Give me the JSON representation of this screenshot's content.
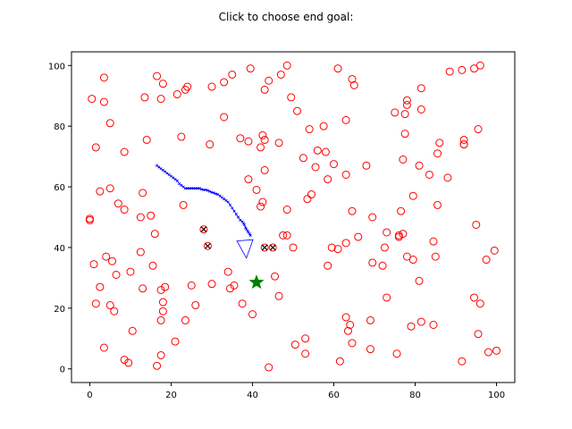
{
  "chart_data": {
    "type": "scatter",
    "title": "Click to choose end goal:",
    "xlabel": "",
    "ylabel": "",
    "xlim": [
      -4.5,
      104.5
    ],
    "ylim": [
      -4.5,
      104.5
    ],
    "xticks": [
      "0",
      "20",
      "40",
      "60",
      "80",
      "100"
    ],
    "yticks": [
      "0",
      "20",
      "40",
      "60",
      "80",
      "100"
    ],
    "grid": false,
    "colors": {
      "obstacle": "#ff0000",
      "obstacle_hit": "#000000",
      "path": "#0000ff",
      "goal": "#008000"
    },
    "obstacles": [
      [
        0.5,
        89
      ],
      [
        3.5,
        96
      ],
      [
        3.5,
        88
      ],
      [
        5,
        81
      ],
      [
        1.5,
        73
      ],
      [
        8.5,
        71.5
      ],
      [
        2.5,
        58.5
      ],
      [
        5,
        59.5
      ],
      [
        7,
        54.5
      ],
      [
        8.5,
        52.5
      ],
      [
        0,
        49.5
      ],
      [
        0,
        49
      ],
      [
        4,
        37
      ],
      [
        5.5,
        35.5
      ],
      [
        1,
        34.5
      ],
      [
        2.5,
        27
      ],
      [
        6.5,
        31
      ],
      [
        10,
        32
      ],
      [
        1.5,
        21.5
      ],
      [
        5,
        21
      ],
      [
        6,
        19
      ],
      [
        10.5,
        12.5
      ],
      [
        3.5,
        7
      ],
      [
        8.5,
        3
      ],
      [
        9.5,
        2
      ],
      [
        13.5,
        89.5
      ],
      [
        17.5,
        89
      ],
      [
        18,
        94
      ],
      [
        16.5,
        96.5
      ],
      [
        14,
        75.5
      ],
      [
        22.5,
        76.5
      ],
      [
        21.5,
        90.5
      ],
      [
        23.5,
        92
      ],
      [
        24,
        93
      ],
      [
        13,
        58
      ],
      [
        12.5,
        50
      ],
      [
        15,
        50.5
      ],
      [
        16,
        44.5
      ],
      [
        12.5,
        38.5
      ],
      [
        15.5,
        34
      ],
      [
        13,
        26.5
      ],
      [
        17.5,
        26
      ],
      [
        18.5,
        27
      ],
      [
        18,
        22
      ],
      [
        18,
        19
      ],
      [
        17.5,
        16
      ],
      [
        21,
        9
      ],
      [
        23.5,
        16
      ],
      [
        25,
        27.5
      ],
      [
        26,
        21
      ],
      [
        16.5,
        1
      ],
      [
        17.5,
        4.5
      ],
      [
        23,
        54
      ],
      [
        29.5,
        74
      ],
      [
        30,
        93
      ],
      [
        33,
        94.5
      ],
      [
        35,
        97
      ],
      [
        39.5,
        99
      ],
      [
        37,
        76
      ],
      [
        39,
        75
      ],
      [
        33,
        83
      ],
      [
        43,
        92
      ],
      [
        44,
        95
      ],
      [
        46.5,
        74.5
      ],
      [
        42.5,
        77
      ],
      [
        43,
        75.5
      ],
      [
        42,
        73
      ],
      [
        43,
        65.5
      ],
      [
        39,
        62.5
      ],
      [
        41,
        59
      ],
      [
        42,
        53.5
      ],
      [
        42.5,
        55
      ],
      [
        48.5,
        52.5
      ],
      [
        50,
        40
      ],
      [
        47.5,
        44
      ],
      [
        48.5,
        44
      ],
      [
        45.5,
        30.5
      ],
      [
        46.5,
        24
      ],
      [
        44,
        0.5
      ],
      [
        40,
        18
      ],
      [
        37.5,
        21.5
      ],
      [
        34,
        32
      ],
      [
        35.5,
        27.5
      ],
      [
        34.5,
        26.5
      ],
      [
        30,
        28
      ],
      [
        47,
        97
      ],
      [
        48.5,
        100
      ],
      [
        49.5,
        89.5
      ],
      [
        51,
        85
      ],
      [
        54,
        79
      ],
      [
        56,
        72
      ],
      [
        58,
        71.5
      ],
      [
        57.5,
        80
      ],
      [
        55.5,
        66.5
      ],
      [
        52.5,
        69.5
      ],
      [
        53.5,
        56
      ],
      [
        54.5,
        57.5
      ],
      [
        58.5,
        62.5
      ],
      [
        60,
        67.5
      ],
      [
        61,
        99
      ],
      [
        63,
        82
      ],
      [
        64.5,
        95.5
      ],
      [
        65,
        93.5
      ],
      [
        68,
        67
      ],
      [
        63,
        64
      ],
      [
        64.5,
        52
      ],
      [
        58.5,
        34
      ],
      [
        59.5,
        40
      ],
      [
        61,
        39.5
      ],
      [
        63,
        41.5
      ],
      [
        66,
        43.5
      ],
      [
        69.5,
        50
      ],
      [
        69.5,
        35
      ],
      [
        72,
        34
      ],
      [
        72.5,
        40
      ],
      [
        73,
        45
      ],
      [
        73,
        23.5
      ],
      [
        69,
        16
      ],
      [
        63,
        17
      ],
      [
        63.5,
        12.5
      ],
      [
        64,
        14.5
      ],
      [
        64.5,
        8.5
      ],
      [
        69,
        6.5
      ],
      [
        61.5,
        2.5
      ],
      [
        53,
        10
      ],
      [
        53,
        5
      ],
      [
        50.5,
        8
      ],
      [
        75,
        84.5
      ],
      [
        77.5,
        84
      ],
      [
        78,
        88.5
      ],
      [
        78,
        87
      ],
      [
        81.5,
        92.5
      ],
      [
        81.5,
        85.5
      ],
      [
        77.5,
        77.5
      ],
      [
        77,
        69
      ],
      [
        79.5,
        57
      ],
      [
        81,
        67
      ],
      [
        83.5,
        64
      ],
      [
        85.5,
        71
      ],
      [
        86,
        74.5
      ],
      [
        88,
        63
      ],
      [
        85.5,
        54
      ],
      [
        88.5,
        98
      ],
      [
        91.5,
        98.5
      ],
      [
        94.5,
        99
      ],
      [
        96,
        100
      ],
      [
        92,
        75.5
      ],
      [
        92,
        74
      ],
      [
        92,
        74
      ],
      [
        95.5,
        79
      ],
      [
        76.5,
        52
      ],
      [
        76,
        44
      ],
      [
        76,
        43.5
      ],
      [
        77,
        44.5
      ],
      [
        78,
        37
      ],
      [
        79.5,
        36
      ],
      [
        75.5,
        5
      ],
      [
        79,
        14
      ],
      [
        81,
        29
      ],
      [
        81.5,
        15.5
      ],
      [
        84.5,
        14.5
      ],
      [
        84.5,
        42
      ],
      [
        85,
        37
      ],
      [
        95,
        47.5
      ],
      [
        97.5,
        36
      ],
      [
        99.5,
        39
      ],
      [
        94.5,
        23.5
      ],
      [
        96,
        21.5
      ],
      [
        95.5,
        11.5
      ],
      [
        98,
        5.5
      ],
      [
        100,
        6
      ],
      [
        91.5,
        2.5
      ]
    ],
    "obstacles_hit": [
      [
        28,
        46
      ],
      [
        29,
        40.5
      ],
      [
        43,
        40
      ],
      [
        45,
        40
      ]
    ],
    "path": [
      [
        16.5,
        67
      ],
      [
        17,
        66.5
      ],
      [
        17.5,
        66
      ],
      [
        18,
        65.5
      ],
      [
        18.5,
        65
      ],
      [
        19,
        64.5
      ],
      [
        19.5,
        64
      ],
      [
        20,
        63.5
      ],
      [
        20.5,
        63
      ],
      [
        21,
        62.5
      ],
      [
        21.5,
        62
      ],
      [
        22,
        61
      ],
      [
        22.5,
        60.5
      ],
      [
        23,
        60
      ],
      [
        23.5,
        59.5
      ],
      [
        24,
        59.5
      ],
      [
        24.5,
        59.5
      ],
      [
        25,
        59.5
      ],
      [
        25.5,
        59.5
      ],
      [
        26,
        59.5
      ],
      [
        26.5,
        59.5
      ],
      [
        27,
        59.5
      ],
      [
        27.5,
        59.2
      ],
      [
        28,
        59
      ],
      [
        28.5,
        59
      ],
      [
        29,
        58.8
      ],
      [
        29.5,
        58.5
      ],
      [
        30,
        58.2
      ],
      [
        30.5,
        58
      ],
      [
        31,
        57.7
      ],
      [
        31.5,
        57.5
      ],
      [
        32,
        57
      ],
      [
        32.5,
        56.5
      ],
      [
        33,
        56
      ],
      [
        33.5,
        55.5
      ],
      [
        34,
        55
      ],
      [
        34.5,
        54
      ],
      [
        35,
        53
      ],
      [
        35.5,
        52
      ],
      [
        36,
        51
      ],
      [
        36.5,
        50
      ],
      [
        37,
        49
      ],
      [
        37.5,
        48.5
      ],
      [
        37.8,
        48
      ],
      [
        38,
        47.5
      ],
      [
        38.3,
        46.5
      ],
      [
        38.5,
        46
      ],
      [
        38.8,
        45.5
      ],
      [
        39,
        45
      ],
      [
        39.3,
        44.5
      ],
      [
        39.5,
        44
      ]
    ],
    "arrow": {
      "start": [
        38,
        45
      ],
      "end": [
        38.5,
        36.5
      ]
    },
    "goal": [
      41,
      28.5
    ]
  }
}
